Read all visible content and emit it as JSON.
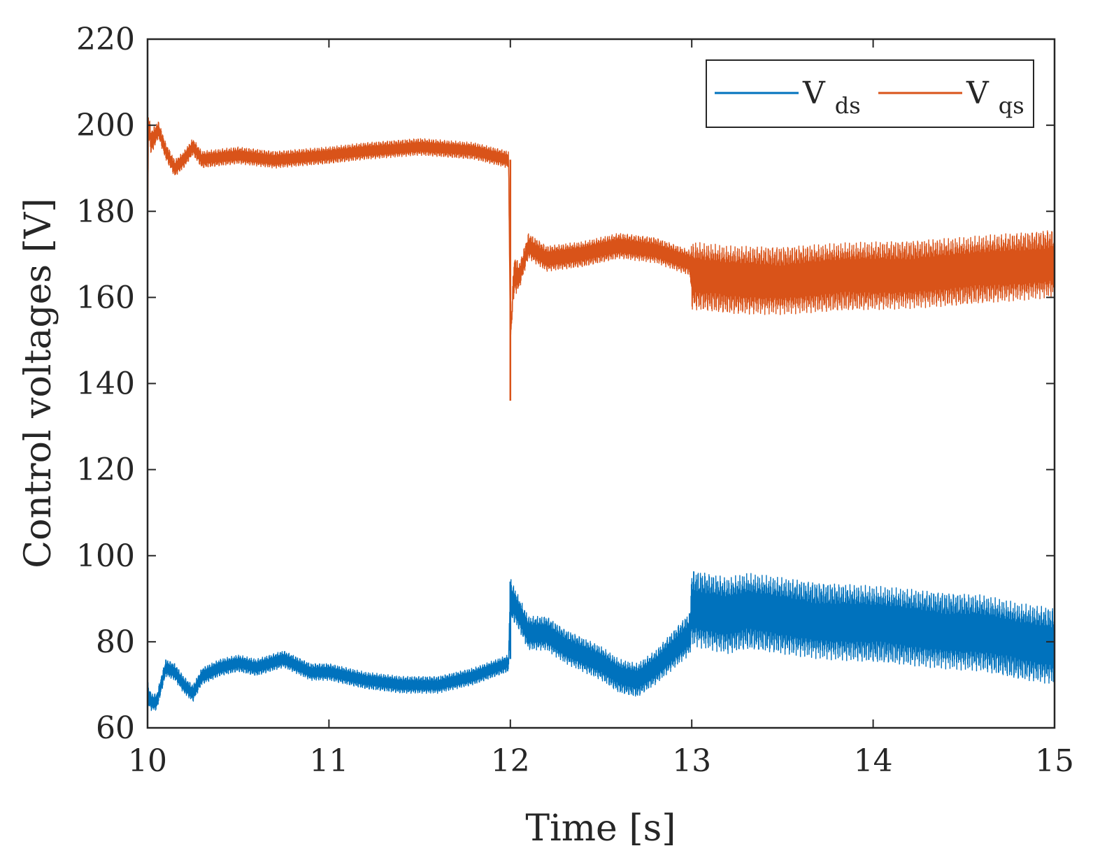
{
  "chart_data": {
    "type": "line",
    "title": "",
    "xlabel": "Time [s]",
    "ylabel": "Control voltages [V]",
    "xlim": [
      10,
      15
    ],
    "ylim": [
      60,
      220
    ],
    "xticks": [
      10,
      11,
      12,
      13,
      14,
      15
    ],
    "yticks": [
      60,
      80,
      100,
      120,
      140,
      160,
      180,
      200,
      220
    ],
    "xtick_labels": [
      "10",
      "11",
      "12",
      "13",
      "14",
      "15"
    ],
    "ytick_labels": [
      "60",
      "80",
      "100",
      "120",
      "140",
      "160",
      "180",
      "200",
      "220"
    ],
    "grid": false,
    "legend_position": "top-right",
    "series": [
      {
        "name": "V",
        "subscript": "ds",
        "color": "#0072BD",
        "t": [
          10.0,
          10.02,
          10.05,
          10.1,
          10.15,
          10.2,
          10.25,
          10.3,
          10.4,
          10.5,
          10.6,
          10.75,
          10.9,
          11.0,
          11.2,
          11.4,
          11.6,
          11.8,
          11.99,
          12.0,
          12.03,
          12.1,
          12.2,
          12.3,
          12.4,
          12.5,
          12.6,
          12.7,
          12.8,
          12.99,
          13.0,
          13.1,
          13.2,
          13.3,
          13.5,
          13.7,
          14.0,
          14.3,
          14.6,
          14.8,
          15.0
        ],
        "center": [
          68,
          66,
          66,
          74,
          73,
          70,
          68,
          72,
          74,
          75,
          74,
          76,
          73,
          73,
          71,
          70,
          70,
          72,
          75,
          90,
          88,
          82,
          82,
          79,
          77,
          75,
          72,
          71,
          74,
          82,
          88,
          87,
          86,
          87,
          86,
          85,
          84,
          83,
          82,
          80,
          79
        ],
        "amplitude": [
          3,
          2,
          2,
          2,
          2,
          2,
          2,
          2,
          2,
          2,
          2,
          2,
          2,
          2,
          2,
          2,
          2,
          2,
          2,
          5,
          4,
          4,
          4,
          4,
          4,
          4,
          4,
          4,
          4,
          5,
          9,
          9,
          9,
          9,
          9,
          9,
          9,
          9,
          9,
          9,
          9
        ]
      },
      {
        "name": "V",
        "subscript": "qs",
        "color": "#D95319",
        "t": [
          10.0,
          10.005,
          10.02,
          10.06,
          10.1,
          10.15,
          10.2,
          10.25,
          10.3,
          10.5,
          10.7,
          11.0,
          11.2,
          11.5,
          11.8,
          11.99,
          12.0,
          12.02,
          12.05,
          12.1,
          12.2,
          12.4,
          12.6,
          12.8,
          12.99,
          13.0,
          13.2,
          13.5,
          14.0,
          14.5,
          15.0
        ],
        "center": [
          170,
          200,
          196,
          199,
          194,
          190,
          192,
          195,
          192,
          193,
          192,
          193,
          194,
          195,
          194,
          192,
          150,
          165,
          165,
          172,
          169,
          170,
          172,
          171,
          168,
          165,
          164,
          164,
          165,
          166,
          168
        ],
        "amplitude": [
          0,
          3,
          3,
          2,
          2,
          2,
          2,
          2,
          2,
          2,
          2,
          2,
          2,
          2,
          2,
          2,
          0,
          5,
          3,
          3,
          3,
          3,
          3,
          3,
          3,
          8,
          8,
          8,
          8,
          8,
          8
        ]
      }
    ],
    "transients": [
      {
        "series": 1,
        "t": 12.0,
        "min": 136,
        "max": 192
      },
      {
        "series": 0,
        "t": 12.0,
        "min": 76,
        "max": 94
      }
    ]
  }
}
